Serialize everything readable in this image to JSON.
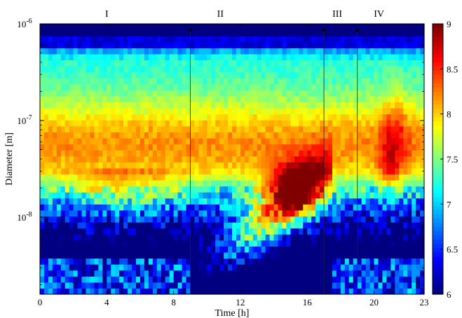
{
  "chart_data": {
    "type": "heatmap",
    "title": "",
    "xlabel": "Time [h]",
    "ylabel": "Diameter [m]",
    "xlim": [
      0,
      23
    ],
    "x_ticks": [
      0,
      4,
      8,
      12,
      16,
      20,
      23
    ],
    "y_scale": "log",
    "ylim": [
      1.6e-09,
      1e-06
    ],
    "y_tick_labels": [
      {
        "value": 1e-06,
        "base": "10",
        "exp": "-6"
      },
      {
        "value": 1e-07,
        "base": "10",
        "exp": "-7"
      },
      {
        "value": 1e-08,
        "base": "10",
        "exp": "-8"
      }
    ],
    "colorbar": {
      "range": [
        6,
        9
      ],
      "ticks": [
        "6",
        "6.5",
        "7",
        "7.5",
        "8",
        "8.5",
        "9"
      ],
      "colormap": "jet",
      "position": "right"
    },
    "phases": [
      {
        "label": "I",
        "x_center": 4
      },
      {
        "label": "II",
        "x_center": 10.8
      },
      {
        "label": "III",
        "x_center": 17.8
      },
      {
        "label": "IV",
        "x_center": 20.3
      }
    ],
    "phase_boundaries_h": [
      9,
      17,
      19
    ],
    "grid": false,
    "description_of_features": [
      {
        "time_h": [
          0,
          23
        ],
        "diameter_m": [
          2.5e-08,
          1e-07
        ],
        "value": 8.2
      },
      {
        "time_h": [
          14,
          16.5
        ],
        "diameter_m": [
          1.2e-08,
          3e-08
        ],
        "value": 8.9
      },
      {
        "time_h": [
          10,
          15
        ],
        "diameter_m": [
          2e-09,
          1e-08
        ],
        "value": 8.0
      }
    ]
  }
}
